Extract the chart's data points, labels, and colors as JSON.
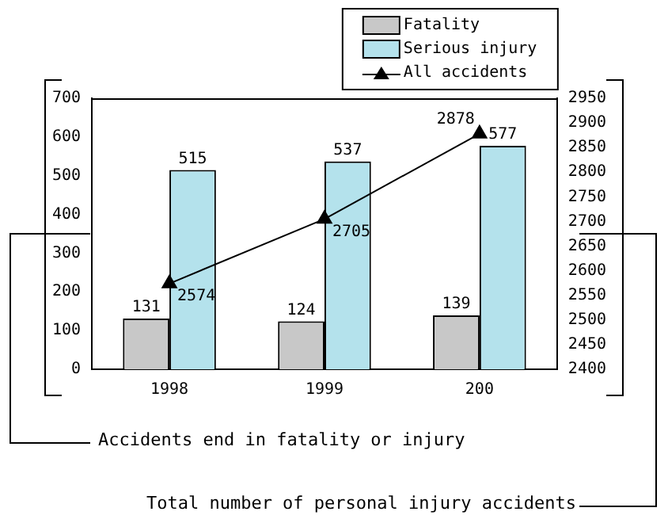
{
  "chart_data": {
    "type": "bar",
    "categories": [
      "1998",
      "1999",
      "200"
    ],
    "series": [
      {
        "name": "Fatality",
        "color": "#c8c8c8",
        "values": [
          131,
          124,
          139
        ]
      },
      {
        "name": "Serious injury",
        "color": "#b4e2ec",
        "values": [
          515,
          537,
          577
        ]
      },
      {
        "name": "All accidents",
        "type": "line",
        "axis": "y2",
        "color": "#000000",
        "marker": "triangle",
        "values": [
          2574,
          2705,
          2878
        ]
      }
    ],
    "annotations": [
      "Accidents end in fatality or injury",
      "Total number of personal injury accidents"
    ],
    "ylim": [
      0,
      700
    ],
    "yticks": [
      0,
      100,
      200,
      300,
      400,
      500,
      600,
      700
    ],
    "y2lim": [
      2400,
      2950
    ],
    "y2ticks": [
      2400,
      2450,
      2500,
      2550,
      2600,
      2650,
      2700,
      2750,
      2800,
      2850,
      2900,
      2950
    ],
    "data_labels": true,
    "legend": "top right",
    "grid": false
  }
}
